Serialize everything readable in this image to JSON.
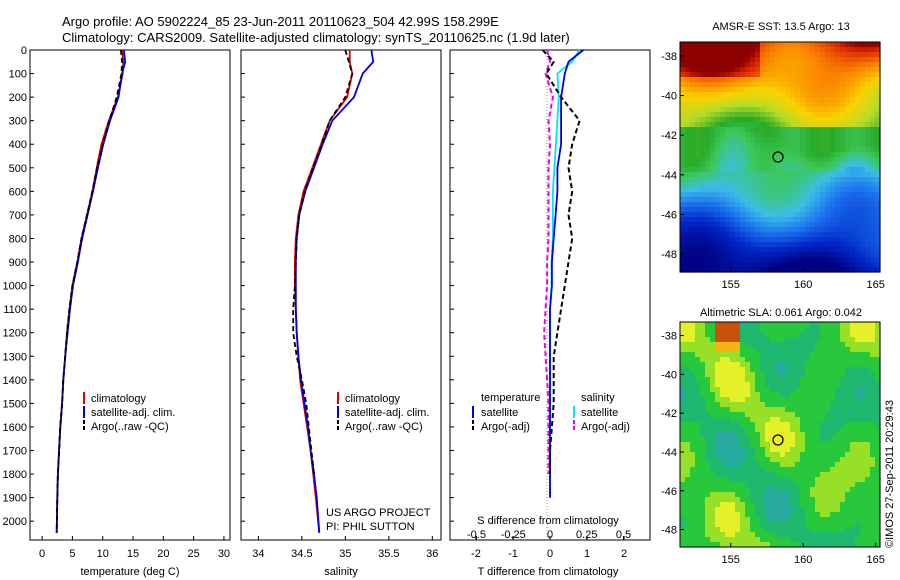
{
  "header": {
    "line1": "Argo profile: AO 5902224_85 23-Jun-2011 20110623_504 42.99S 158.299E",
    "line2": "Climatology: CARS2009. Satellite-adjusted climatology: synTS_20110625.nc (1.9d later)"
  },
  "depth_ticks": [
    "0",
    "100",
    "200",
    "300",
    "400",
    "500",
    "600",
    "700",
    "800",
    "900",
    "1000",
    "1100",
    "1200",
    "1300",
    "1400",
    "1500",
    "1600",
    "1700",
    "1800",
    "1900",
    "2000"
  ],
  "credit": {
    "project": "US ARGO PROJECT",
    "pi": "PI: PHIL SUTTON",
    "stamp": "©IMOS 27-Sep-2011 20:29:43"
  },
  "colors": {
    "climatology": "#dd0000",
    "satellite": "#0000dd",
    "argo": "#000000",
    "sal_satellite": "#00e5ee",
    "sal_argo": "#ee00ee"
  },
  "panels": {
    "temperature": {
      "xlabel": "temperature (deg C)",
      "xticks": [
        "0",
        "5",
        "10",
        "15",
        "20",
        "25",
        "30"
      ],
      "legend": [
        "climatology",
        "satellite-adj. clim.",
        "Argo(..raw -QC)"
      ]
    },
    "salinity": {
      "xlabel": "salinity",
      "xticks": [
        "34",
        "34.5",
        "35",
        "35.5",
        "36"
      ],
      "legend": [
        "climatology",
        "satellite-adj. clim.",
        "Argo(..raw -QC)"
      ]
    },
    "difference": {
      "xlabel": "T difference from climatology",
      "xlabel2": "S difference from climatology",
      "xticks": [
        "-2",
        "-1",
        "0",
        "1",
        "2"
      ],
      "xticks2": [
        "-0.5",
        "-0.25",
        "0",
        "0.25",
        "0.5"
      ],
      "legend_temp_title": "temperature",
      "legend_sal_title": "salinity",
      "legend_temp": [
        "satellite",
        "Argo(-adj)"
      ],
      "legend_sal": [
        "satellite",
        "Argo(-adj)"
      ]
    }
  },
  "maps": {
    "sst": {
      "title": "AMSR-E SST: 13.5 Argo: 13",
      "yticks": [
        "-38",
        "-40",
        "-42",
        "-44",
        "-46",
        "-48"
      ],
      "xticks": [
        "155",
        "160",
        "165"
      ],
      "marker": {
        "lon": 158.3,
        "lat": -43.0
      }
    },
    "sla": {
      "title": "Altimetric SLA: 0.061 Argo: 0.042",
      "yticks": [
        "-38",
        "-40",
        "-42",
        "-44",
        "-46",
        "-48"
      ],
      "xticks": [
        "155",
        "160",
        "165"
      ],
      "marker": {
        "lon": 158.3,
        "lat": -43.0
      }
    }
  },
  "chart_data": [
    {
      "type": "line",
      "xlabel": "temperature (deg C)",
      "ylabel": "",
      "xlim": [
        -2,
        31
      ],
      "ylim": [
        2080,
        0
      ],
      "series": [
        {
          "name": "climatology",
          "x": [
            13.2,
            13.4,
            13.3,
            12.5,
            11.0,
            9.8,
            9.0,
            8.3,
            7.4,
            6.5,
            5.8,
            5.0,
            4.5,
            4.1,
            3.8,
            3.5,
            3.3,
            3.0,
            2.8,
            2.6,
            2.5,
            2.4
          ],
          "y": [
            0,
            50,
            100,
            200,
            300,
            400,
            500,
            600,
            700,
            800,
            900,
            1000,
            1100,
            1200,
            1300,
            1400,
            1500,
            1600,
            1700,
            1800,
            1900,
            2050
          ]
        },
        {
          "name": "satellite-adj. clim.",
          "x": [
            13.5,
            13.7,
            13.2,
            12.6,
            11.2,
            10.1,
            9.2,
            8.4,
            7.5,
            6.6,
            5.9,
            5.1,
            4.6,
            4.2,
            3.8,
            3.5,
            3.3,
            3.0,
            2.8,
            2.6,
            2.5,
            2.4
          ],
          "y": [
            0,
            50,
            100,
            200,
            300,
            400,
            500,
            600,
            700,
            800,
            900,
            1000,
            1100,
            1200,
            1300,
            1400,
            1500,
            1600,
            1700,
            1800,
            1900,
            2050
          ]
        },
        {
          "name": "Argo(..raw -QC)",
          "x": [
            13.0,
            13.2,
            13.1,
            12.3,
            11.1,
            10.0,
            9.1,
            8.3,
            7.4,
            6.5,
            5.8,
            5.0,
            4.5,
            4.1,
            3.8,
            3.5,
            3.3,
            3.0,
            2.8,
            2.6,
            2.5,
            2.4
          ],
          "y": [
            0,
            50,
            100,
            200,
            300,
            400,
            500,
            600,
            700,
            800,
            900,
            1000,
            1100,
            1200,
            1300,
            1400,
            1500,
            1600,
            1700,
            1800,
            1900,
            2050
          ]
        }
      ]
    },
    {
      "type": "line",
      "xlabel": "salinity",
      "ylabel": "",
      "xlim": [
        33.8,
        36.1
      ],
      "ylim": [
        2080,
        0
      ],
      "series": [
        {
          "name": "climatology",
          "x": [
            35.05,
            35.05,
            35.08,
            35.02,
            34.82,
            34.72,
            34.62,
            34.52,
            34.46,
            34.43,
            34.42,
            34.42,
            34.43,
            34.44,
            34.46,
            34.48,
            34.52,
            34.56,
            34.6,
            34.63,
            34.66,
            34.7
          ],
          "y": [
            0,
            50,
            100,
            200,
            300,
            400,
            500,
            600,
            700,
            800,
            900,
            1000,
            1100,
            1200,
            1300,
            1400,
            1500,
            1600,
            1700,
            1800,
            1900,
            2050
          ]
        },
        {
          "name": "satellite-adj. clim.",
          "x": [
            35.3,
            35.32,
            35.2,
            35.1,
            34.85,
            34.74,
            34.64,
            34.54,
            34.47,
            34.44,
            34.43,
            34.43,
            34.43,
            34.44,
            34.46,
            34.49,
            34.53,
            34.57,
            34.6,
            34.64,
            34.67,
            34.7
          ],
          "y": [
            0,
            50,
            100,
            200,
            300,
            400,
            500,
            600,
            700,
            800,
            900,
            1000,
            1100,
            1200,
            1300,
            1400,
            1500,
            1600,
            1700,
            1800,
            1900,
            2050
          ]
        },
        {
          "name": "Argo(..raw -QC)",
          "x": [
            35.0,
            35.04,
            35.08,
            35.0,
            34.82,
            34.73,
            34.63,
            34.53,
            34.47,
            34.44,
            34.43,
            34.42,
            34.4,
            34.4,
            34.44,
            34.5,
            34.55,
            34.58,
            34.61,
            34.64
          ],
          "y": [
            0,
            50,
            100,
            200,
            300,
            400,
            500,
            600,
            700,
            800,
            900,
            1000,
            1100,
            1200,
            1300,
            1400,
            1500,
            1600,
            1700,
            1800
          ]
        }
      ]
    },
    {
      "type": "line",
      "xlabel": "T difference from climatology",
      "ylabel": "",
      "xlim": [
        -2.7,
        2.7
      ],
      "ylim": [
        2080,
        0
      ],
      "series": [
        {
          "name": "satellite",
          "x": [
            0.9,
            0.5,
            0.4,
            0.3,
            0.3,
            0.3,
            0.2,
            0.2,
            0.15,
            0.1,
            0.05,
            0.05,
            0.0,
            0.0,
            0.0,
            0.0,
            0.0,
            0.0,
            0.0,
            0.0,
            0.0
          ],
          "y": [
            0,
            50,
            100,
            200,
            300,
            400,
            500,
            600,
            700,
            800,
            900,
            1000,
            1100,
            1200,
            1300,
            1400,
            1500,
            1600,
            1700,
            1800,
            1900
          ]
        },
        {
          "name": "Argo(-adj)",
          "x": [
            -0.2,
            0.1,
            -0.1,
            0.3,
            0.8,
            0.6,
            0.5,
            0.6,
            0.5,
            0.6,
            0.5,
            0.4,
            0.3,
            0.2,
            0.1,
            0.1,
            0.1,
            0.05,
            0.0,
            0.0
          ],
          "y": [
            0,
            50,
            100,
            200,
            300,
            400,
            500,
            600,
            700,
            800,
            900,
            1000,
            1100,
            1200,
            1300,
            1400,
            1500,
            1600,
            1700,
            1800
          ]
        }
      ]
    },
    {
      "type": "line",
      "xlabel": "S difference from climatology",
      "ylabel": "",
      "xlim": [
        -0.68,
        0.68
      ],
      "ylim": [
        2080,
        0
      ],
      "series": [
        {
          "name": "satellite",
          "x": [
            0.2,
            0.15,
            0.05,
            0.06,
            0.05,
            0.04,
            0.03,
            0.02,
            0.02,
            0.02,
            0.01,
            0.01,
            0.0,
            0.0,
            0.0,
            0.0,
            0.0,
            0.0,
            0.0,
            0.0,
            0.0
          ],
          "y": [
            0,
            50,
            100,
            200,
            300,
            400,
            500,
            600,
            700,
            800,
            900,
            1000,
            1100,
            1200,
            1300,
            1400,
            1500,
            1600,
            1700,
            1800,
            1900
          ]
        },
        {
          "name": "Argo(-adj)",
          "x": [
            -0.02,
            0.0,
            -0.03,
            0.02,
            -0.01,
            0.0,
            -0.01,
            -0.01,
            -0.01,
            -0.01,
            -0.02,
            -0.02,
            -0.03,
            -0.04,
            -0.03,
            -0.02,
            -0.01,
            -0.01,
            -0.01,
            -0.01
          ],
          "y": [
            0,
            50,
            100,
            200,
            300,
            400,
            500,
            600,
            700,
            800,
            900,
            1000,
            1100,
            1200,
            1300,
            1400,
            1500,
            1600,
            1700,
            1800
          ]
        }
      ]
    }
  ]
}
